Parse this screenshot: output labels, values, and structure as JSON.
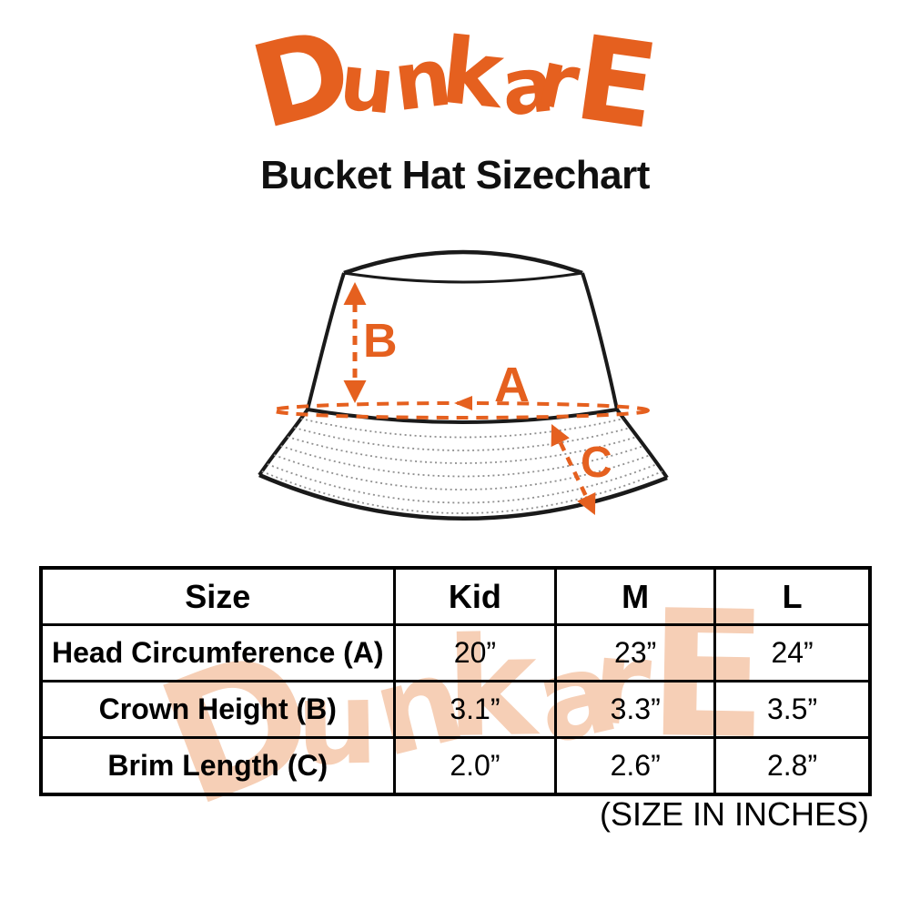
{
  "brand": {
    "name": "DunkarE",
    "color": "#E5601F",
    "watermark_color": "#F6CFB6"
  },
  "title": "Bucket Hat Sizechart",
  "diagram": {
    "labels": {
      "a": "A",
      "b": "B",
      "c": "C"
    },
    "arrow_color": "#E5601F"
  },
  "size_table": {
    "columns": [
      "Size",
      "Kid",
      "M",
      "L"
    ],
    "rows": [
      {
        "label": "Head Circumference (A)",
        "values": [
          "20”",
          "23”",
          "24”"
        ]
      },
      {
        "label": "Crown Height (B)",
        "values": [
          "3.1”",
          "3.3”",
          "3.5”"
        ]
      },
      {
        "label": "Brim Length (C)",
        "values": [
          "2.0”",
          "2.6”",
          "2.8”"
        ]
      }
    ]
  },
  "footnote": "(SIZE IN INCHES)"
}
